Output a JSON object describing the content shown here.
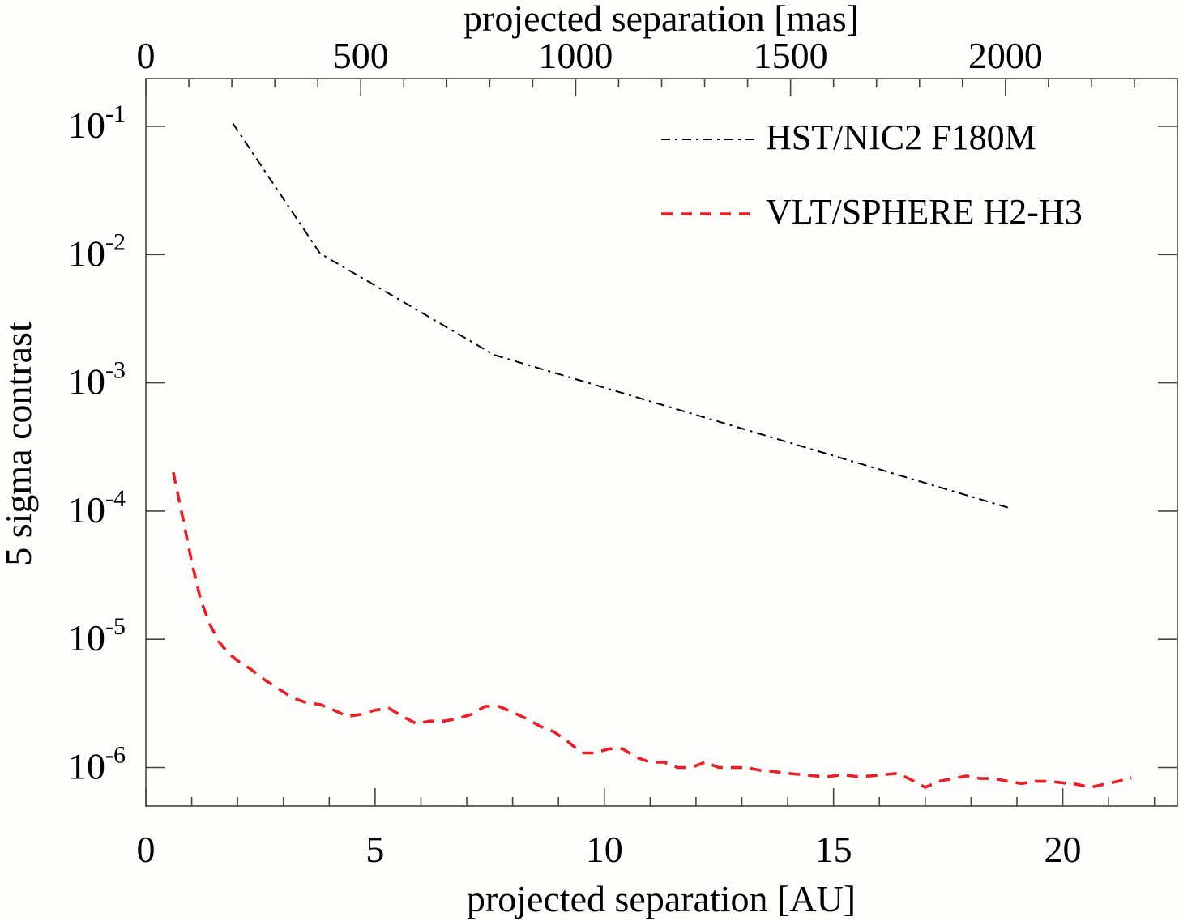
{
  "chart_data": {
    "type": "line",
    "xlabel": "projected separation [AU]",
    "x2label": "projected separation [mas]",
    "ylabel": "5 sigma contrast",
    "xlim": [
      0,
      22.5
    ],
    "x2lim": [
      0,
      2400
    ],
    "ylim": [
      1e-07,
      0.4
    ],
    "yscale": "log",
    "xticks": [
      0,
      5,
      10,
      15,
      20
    ],
    "x2ticks": [
      0,
      500,
      1000,
      1500,
      2000
    ],
    "yticks": [
      {
        "value": 0.1,
        "base": "10",
        "exp": "-1"
      },
      {
        "value": 0.01,
        "base": "10",
        "exp": "-2"
      },
      {
        "value": 0.001,
        "base": "10",
        "exp": "-3"
      },
      {
        "value": 0.0001,
        "base": "10",
        "exp": "-4"
      },
      {
        "value": 1e-05,
        "base": "10",
        "exp": "-5"
      },
      {
        "value": 1e-06,
        "base": "10",
        "exp": "-6"
      }
    ],
    "legend_position": "top-right",
    "series": [
      {
        "name": "HST/NIC2 F180M",
        "color": "#000000",
        "style": "dash-dot",
        "x": [
          1.9,
          3.8,
          7.6,
          18.9
        ],
        "y": [
          0.105,
          0.0102,
          0.00165,
          0.000104
        ]
      },
      {
        "name": "VLT/SPHERE H2-H3",
        "color": "#ee1c25",
        "style": "dashed",
        "x": [
          0.6,
          0.8,
          1.0,
          1.2,
          1.4,
          1.6,
          1.8,
          2.0,
          2.3,
          2.6,
          2.9,
          3.2,
          3.5,
          3.8,
          4.1,
          4.4,
          4.7,
          5.0,
          5.3,
          5.6,
          5.9,
          6.2,
          6.5,
          6.8,
          7.1,
          7.4,
          7.7,
          8.0,
          8.3,
          8.6,
          8.9,
          9.2,
          9.5,
          9.8,
          10.1,
          10.4,
          10.7,
          11.0,
          11.3,
          11.6,
          11.9,
          12.2,
          12.5,
          12.8,
          13.1,
          13.4,
          13.7,
          14.0,
          14.3,
          14.6,
          14.9,
          15.2,
          15.5,
          15.8,
          16.1,
          16.4,
          16.7,
          17.0,
          17.3,
          17.6,
          17.9,
          18.2,
          18.5,
          18.8,
          19.1,
          19.4,
          19.7,
          20.0,
          20.3,
          20.6,
          20.9,
          21.2,
          21.5
        ],
        "y": [
          0.0002,
          9e-05,
          4e-05,
          2e-05,
          1.3e-05,
          9.5e-06,
          7.8e-06,
          6.8e-06,
          5.8e-06,
          4.8e-06,
          4.1e-06,
          3.5e-06,
          3.2e-06,
          3.1e-06,
          2.8e-06,
          2.5e-06,
          2.6e-06,
          2.8e-06,
          2.9e-06,
          2.5e-06,
          2.2e-06,
          2.3e-06,
          2.3e-06,
          2.4e-06,
          2.6e-06,
          3e-06,
          3e-06,
          2.7e-06,
          2.4e-06,
          2.1e-06,
          1.9e-06,
          1.6e-06,
          1.3e-06,
          1.3e-06,
          1.4e-06,
          1.4e-06,
          1.2e-06,
          1.1e-06,
          1.1e-06,
          1e-06,
          1e-06,
          1.1e-06,
          1e-06,
          1e-06,
          1e-06,
          9.5e-07,
          9.3e-07,
          9e-07,
          8.8e-07,
          8.6e-07,
          8.5e-07,
          8.8e-07,
          8.5e-07,
          8.6e-07,
          8.8e-07,
          9e-07,
          8e-07,
          7e-07,
          7.8e-07,
          8.2e-07,
          8.6e-07,
          8.2e-07,
          8.2e-07,
          7.8e-07,
          7.5e-07,
          7.8e-07,
          7.8e-07,
          7.6e-07,
          7.4e-07,
          7e-07,
          7.4e-07,
          7.8e-07,
          8.3e-07
        ]
      }
    ]
  }
}
